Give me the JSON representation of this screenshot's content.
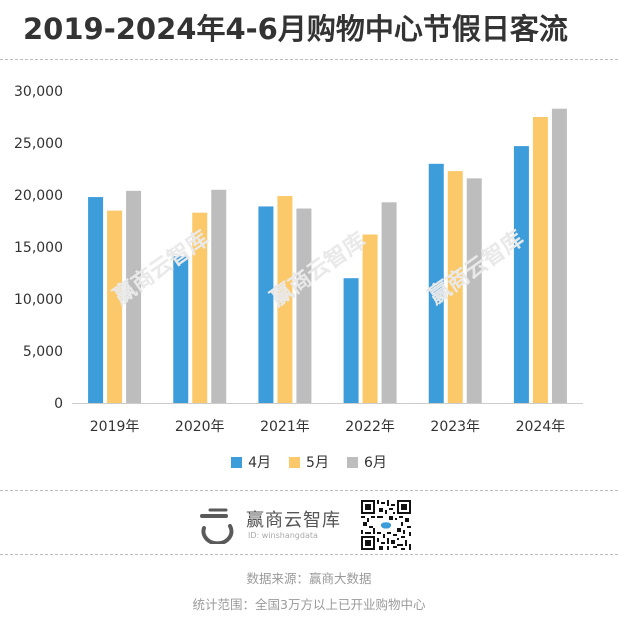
{
  "title": "2019-2024年4-6月购物中心节假日客流",
  "chart_data": {
    "type": "bar",
    "categories": [
      "2019年",
      "2020年",
      "2021年",
      "2022年",
      "2023年",
      "2024年"
    ],
    "series": [
      {
        "name": "4月",
        "color": "#3d9ddb",
        "values": [
          19800,
          14100,
          18900,
          12000,
          23000,
          24700
        ]
      },
      {
        "name": "5月",
        "color": "#fbc96a",
        "values": [
          18500,
          18300,
          19900,
          16200,
          22300,
          27500
        ]
      },
      {
        "name": "6月",
        "color": "#bdbdbd",
        "values": [
          20400,
          20500,
          18700,
          19300,
          21600,
          28300
        ]
      }
    ],
    "yticks": [
      "0",
      "5,000",
      "10,000",
      "15,000",
      "20,000",
      "25,000",
      "30,000"
    ],
    "ylim": [
      0,
      30000
    ],
    "grid": false,
    "legend_position": "bottom"
  },
  "watermark": "赢商云智库",
  "brand": {
    "name": "赢商云智库",
    "id": "ID: winshangdata"
  },
  "source_line": "数据来源：赢商大数据",
  "scope_line": "统计范围：全国3万方以上已开业购物中心"
}
